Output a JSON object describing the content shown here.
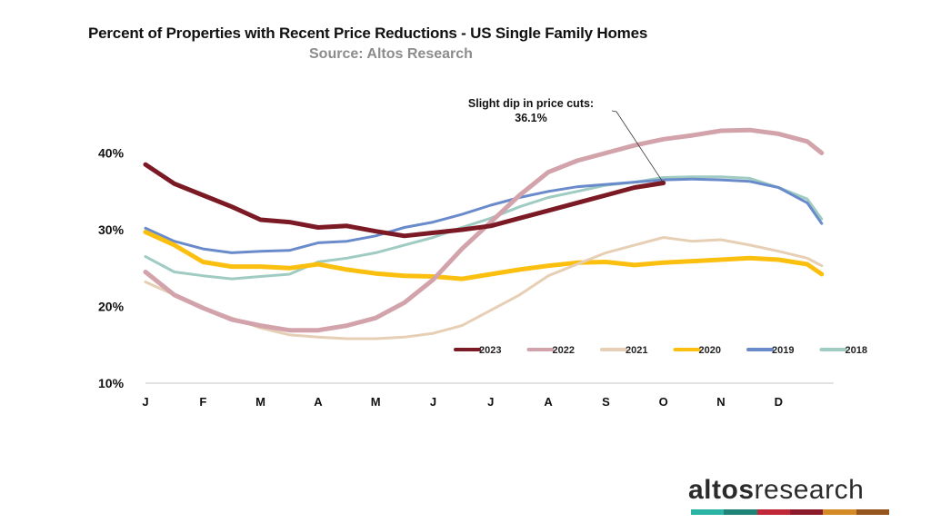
{
  "chart_data": {
    "type": "line",
    "title": "Percent of Properties with Recent Price Reductions - US Single Family Homes",
    "subtitle": "Source: Altos Research",
    "xlabel": "",
    "ylabel": "",
    "x_tick_labels": [
      "J",
      "F",
      "M",
      "A",
      "M",
      "J",
      "J",
      "A",
      "S",
      "O",
      "N",
      "D"
    ],
    "y_tick_labels": [
      "10%",
      "20%",
      "30%",
      "40%"
    ],
    "y_ticks": [
      10,
      20,
      30,
      40
    ],
    "ylim": [
      10,
      40
    ],
    "xlim_months": [
      0,
      11.75
    ],
    "grid": false,
    "legend_position": "bottom-right",
    "x_months": [
      0,
      0.5,
      1,
      1.5,
      2,
      2.5,
      3,
      3.5,
      4,
      4.5,
      5,
      5.5,
      6,
      6.5,
      7,
      7.5,
      8,
      8.5,
      9,
      9.5,
      10,
      10.5,
      11,
      11.5,
      11.75
    ],
    "series": [
      {
        "name": "2023",
        "color": "#7b1a24",
        "values": [
          38.5,
          36.0,
          34.5,
          33.0,
          31.3,
          31.0,
          30.3,
          30.5,
          29.8,
          29.2,
          29.6,
          30.0,
          30.5,
          31.5,
          32.5,
          33.5,
          34.5,
          35.5,
          36.1,
          null,
          null,
          null,
          null,
          null,
          null
        ]
      },
      {
        "name": "2022",
        "color": "#d3a3ac",
        "values": [
          24.5,
          21.5,
          19.8,
          18.3,
          17.5,
          16.9,
          16.9,
          17.5,
          18.5,
          20.5,
          23.5,
          27.5,
          31.0,
          34.5,
          37.5,
          39.0,
          40.0,
          41.0,
          41.8,
          42.3,
          42.9,
          43.0,
          42.5,
          41.5,
          40.0
        ]
      },
      {
        "name": "2021",
        "color": "#e6cfb4",
        "values": [
          23.2,
          21.5,
          19.8,
          18.5,
          17.2,
          16.3,
          16.0,
          15.8,
          15.8,
          16.0,
          16.5,
          17.5,
          19.5,
          21.5,
          24.0,
          25.5,
          27.0,
          28.0,
          29.0,
          28.5,
          28.7,
          28.0,
          27.2,
          26.3,
          25.3
        ]
      },
      {
        "name": "2020",
        "color": "#fbbf0f",
        "values": [
          29.7,
          28.0,
          25.8,
          25.2,
          25.2,
          25.0,
          25.5,
          24.8,
          24.3,
          24.0,
          23.9,
          23.6,
          24.2,
          24.8,
          25.3,
          25.7,
          25.8,
          25.4,
          25.7,
          25.9,
          26.1,
          26.3,
          26.1,
          25.5,
          24.2
        ]
      },
      {
        "name": "2019",
        "color": "#6a8bcb",
        "values": [
          30.2,
          28.5,
          27.5,
          27.0,
          27.2,
          27.3,
          28.3,
          28.5,
          29.2,
          30.3,
          31.0,
          32.0,
          33.2,
          34.2,
          35.0,
          35.6,
          35.9,
          36.2,
          36.5,
          36.6,
          36.5,
          36.3,
          35.5,
          33.5,
          30.8
        ]
      },
      {
        "name": "2018",
        "color": "#9fcbc3",
        "values": [
          26.5,
          24.5,
          24.0,
          23.6,
          23.9,
          24.2,
          25.8,
          26.3,
          27.0,
          28.0,
          29.0,
          30.3,
          31.5,
          33.0,
          34.2,
          35.0,
          35.8,
          36.2,
          36.8,
          36.9,
          36.9,
          36.7,
          35.5,
          34.0,
          31.4
        ]
      }
    ],
    "annotation": {
      "line1": "Slight dip in price cuts:",
      "line2": "36.1%",
      "value": 36.1,
      "series": "2023"
    }
  },
  "logo": {
    "bold": "altos",
    "light": "research",
    "bar_colors": [
      "#2bb3a4",
      "#1f8477",
      "#c0283a",
      "#8c1b2b",
      "#d48b25",
      "#94561c"
    ]
  }
}
